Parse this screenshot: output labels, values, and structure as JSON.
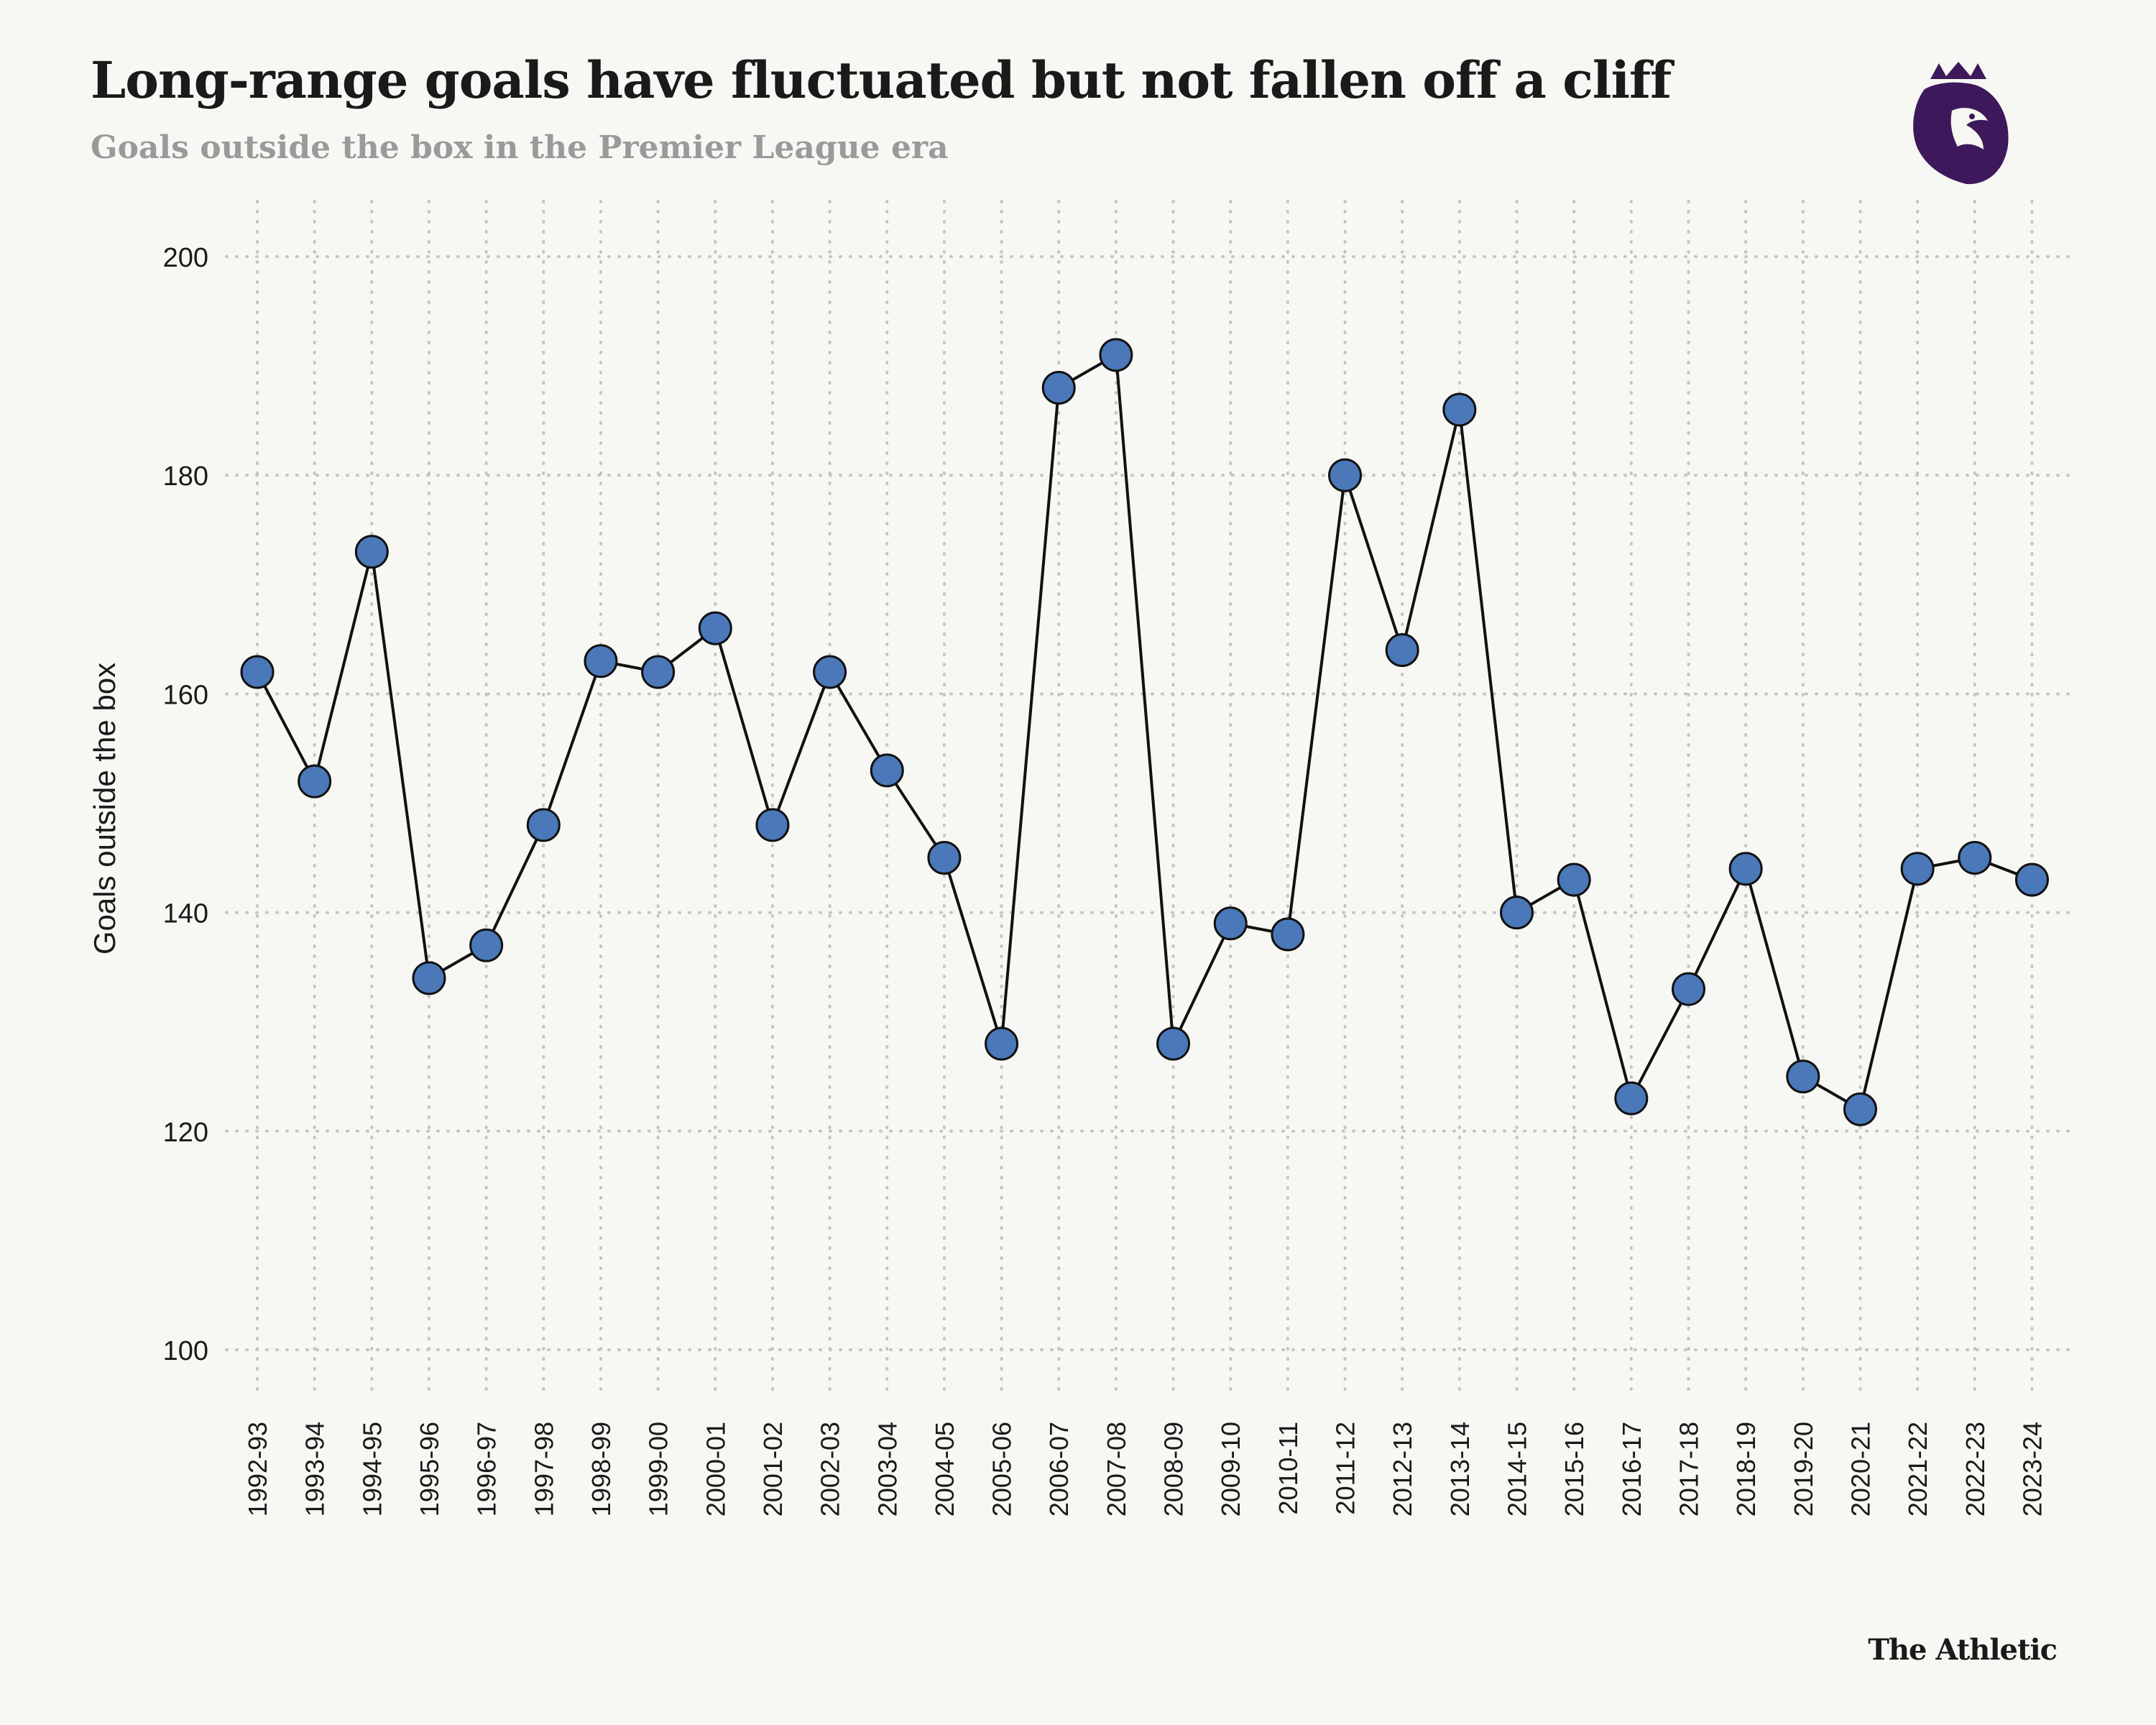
{
  "header": {
    "title": "Long-range goals have fluctuated but not fallen off a cliff",
    "subtitle": "Goals outside the box in the Premier League era"
  },
  "footer": {
    "brand": "The Athletic"
  },
  "logo": {
    "icon": "premier-league-lion-icon",
    "color": "#3d195b"
  },
  "colors": {
    "marker_fill": "#4a78b8",
    "marker_stroke": "#111111",
    "line": "#111111",
    "grid": "#c4c4c4",
    "background": "#f7f7f4"
  },
  "chart_data": {
    "type": "line",
    "title": "Long-range goals have fluctuated but not fallen off a cliff",
    "subtitle": "Goals outside the box in the Premier League era",
    "xlabel": "",
    "ylabel": "Goals outside the box",
    "ylim": [
      100,
      200
    ],
    "yticks": [
      100,
      120,
      140,
      160,
      180,
      200
    ],
    "grid": true,
    "markers": true,
    "categories": [
      "1992-93",
      "1993-94",
      "1994-95",
      "1995-96",
      "1996-97",
      "1997-98",
      "1998-99",
      "1999-00",
      "2000-01",
      "2001-02",
      "2002-03",
      "2003-04",
      "2004-05",
      "2005-06",
      "2006-07",
      "2007-08",
      "2008-09",
      "2009-10",
      "2010-11",
      "2011-12",
      "2012-13",
      "2013-14",
      "2014-15",
      "2015-16",
      "2016-17",
      "2017-18",
      "2018-19",
      "2019-20",
      "2020-21",
      "2021-22",
      "2022-23",
      "2023-24"
    ],
    "values": [
      162,
      152,
      173,
      134,
      137,
      148,
      163,
      162,
      166,
      148,
      162,
      153,
      145,
      128,
      188,
      191,
      128,
      139,
      138,
      180,
      164,
      186,
      140,
      143,
      123,
      133,
      144,
      125,
      122,
      144,
      145,
      143
    ]
  }
}
